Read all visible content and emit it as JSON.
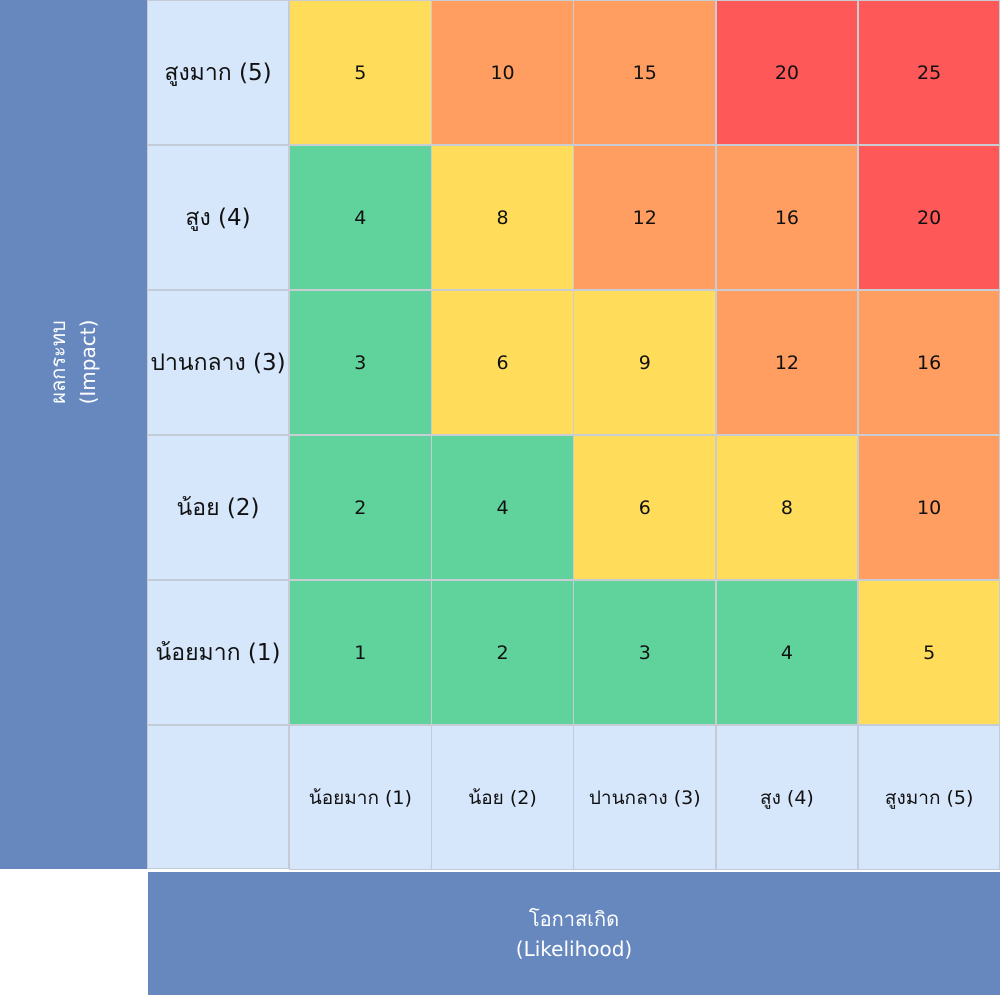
{
  "axes": {
    "impact": {
      "title_th": "ผลกระทบ",
      "title_en": "(Impact)"
    },
    "likelihood": {
      "title_th": "โอกาสเกิด",
      "title_en": "(Likelihood)"
    }
  },
  "colors": {
    "green": "#5fd39b",
    "yellow": "#ffdd5b",
    "orange": "#ff9e60",
    "red": "#ff5858",
    "axis_banner": "#6688bf",
    "label_bg": "#d6e6fb"
  },
  "chart_data": {
    "type": "heatmap",
    "rows": [
      "สูงมาก (5)",
      "สูง (4)",
      "ปานกลาง (3)",
      "น้อย (2)",
      "น้อยมาก (1)"
    ],
    "columns": [
      "น้อยมาก (1)",
      "น้อย (2)",
      "ปานกลาง (3)",
      "สูง (4)",
      "สูงมาก (5)"
    ],
    "values": [
      [
        5,
        10,
        15,
        20,
        25
      ],
      [
        4,
        8,
        12,
        16,
        20
      ],
      [
        3,
        6,
        9,
        12,
        16
      ],
      [
        2,
        4,
        6,
        8,
        10
      ],
      [
        1,
        2,
        3,
        4,
        5
      ]
    ],
    "cell_colors": [
      [
        "yellow",
        "orange",
        "orange",
        "red",
        "red"
      ],
      [
        "green",
        "yellow",
        "orange",
        "orange",
        "red"
      ],
      [
        "green",
        "yellow",
        "yellow",
        "orange",
        "orange"
      ],
      [
        "green",
        "green",
        "yellow",
        "yellow",
        "orange"
      ],
      [
        "green",
        "green",
        "green",
        "green",
        "yellow"
      ]
    ]
  }
}
